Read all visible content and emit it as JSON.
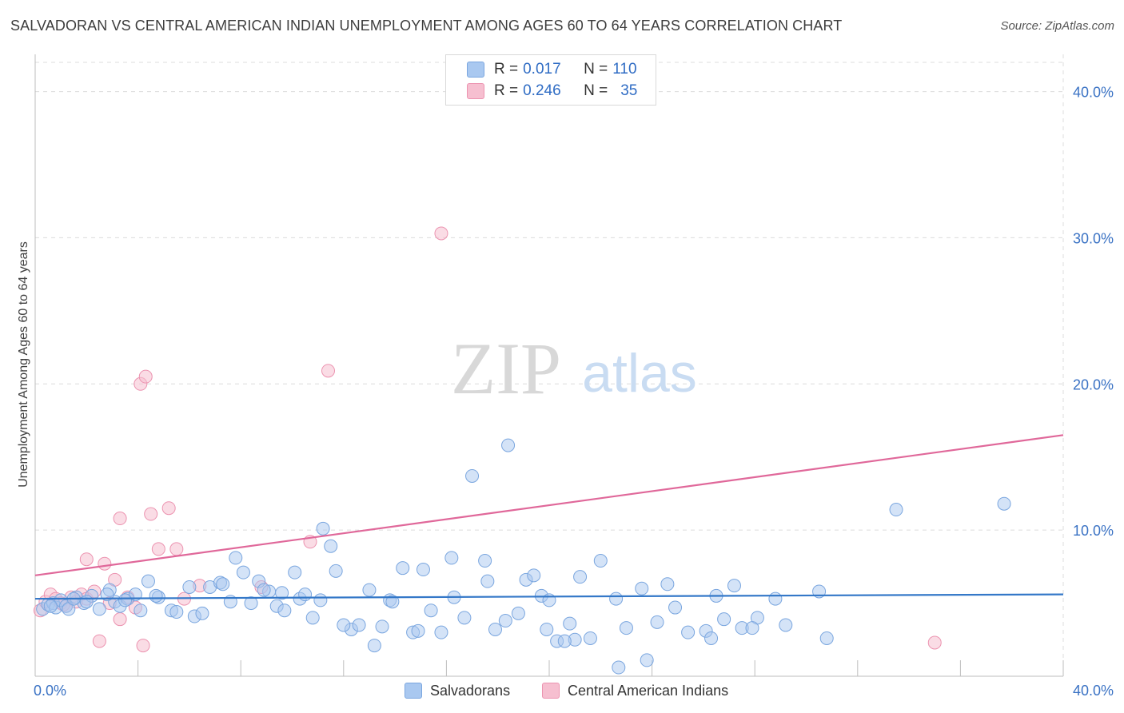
{
  "title": "SALVADORAN VS CENTRAL AMERICAN INDIAN UNEMPLOYMENT AMONG AGES 60 TO 64 YEARS CORRELATION CHART",
  "source": "Source: ZipAtlas.com",
  "watermark": {
    "zip": "ZIP",
    "atlas": "atlas"
  },
  "legend_top": [
    {
      "r_label": "R = ",
      "r_value": "0.017",
      "n_label": "N = ",
      "n_value": "110"
    },
    {
      "r_label": "R = ",
      "r_value": "0.246",
      "n_label": "N = ",
      "n_value": "35"
    }
  ],
  "legend_bottom": [
    "Salvadorans",
    "Central American Indians"
  ],
  "colors": {
    "blue_fill": "#a9c8f0",
    "blue_stroke": "#7aa6df",
    "blue_line": "#3478c8",
    "pink_fill": "#f6bfd0",
    "pink_stroke": "#ec93b0",
    "pink_line": "#e0689a",
    "tick_text": "#3a72c4",
    "grid": "#dcdcdc"
  },
  "chart_data": {
    "type": "scatter",
    "title": "SALVADORAN VS CENTRAL AMERICAN INDIAN UNEMPLOYMENT AMONG AGES 60 TO 64 YEARS CORRELATION CHART",
    "xlabel": "",
    "ylabel": "Unemployment Among Ages 60 to 64 years",
    "xlim": [
      0,
      40
    ],
    "ylim": [
      0,
      42
    ],
    "x_tick_labels": [
      {
        "value": 0,
        "label": "0.0%"
      },
      {
        "value": 40,
        "label": "40.0%"
      }
    ],
    "y_tick_labels": [
      {
        "value": 10,
        "label": "10.0%"
      },
      {
        "value": 20,
        "label": "20.0%"
      },
      {
        "value": 30,
        "label": "30.0%"
      },
      {
        "value": 40,
        "label": "40.0%"
      }
    ],
    "grid": true,
    "legend_position": "top-center",
    "series": [
      {
        "name": "Salvadorans",
        "r": 0.017,
        "n": 110,
        "trend": {
          "x": [
            0,
            40
          ],
          "y": [
            5.3,
            5.6
          ]
        },
        "points": [
          [
            0.3,
            4.6
          ],
          [
            0.5,
            4.9
          ],
          [
            0.7,
            5.0
          ],
          [
            0.8,
            4.7
          ],
          [
            1.0,
            5.2
          ],
          [
            1.2,
            4.8
          ],
          [
            1.3,
            4.6
          ],
          [
            1.6,
            5.4
          ],
          [
            1.9,
            5.0
          ],
          [
            2.2,
            5.5
          ],
          [
            2.5,
            4.6
          ],
          [
            2.9,
            5.9
          ],
          [
            3.1,
            5.1
          ],
          [
            3.3,
            4.8
          ],
          [
            3.6,
            5.3
          ],
          [
            3.9,
            5.6
          ],
          [
            4.1,
            4.5
          ],
          [
            4.4,
            6.5
          ],
          [
            4.8,
            5.4
          ],
          [
            5.3,
            4.5
          ],
          [
            5.5,
            4.4
          ],
          [
            6.2,
            4.1
          ],
          [
            6.8,
            6.1
          ],
          [
            7.2,
            6.4
          ],
          [
            7.6,
            5.1
          ],
          [
            7.8,
            8.1
          ],
          [
            8.1,
            7.1
          ],
          [
            8.4,
            5.0
          ],
          [
            8.7,
            6.5
          ],
          [
            9.1,
            5.8
          ],
          [
            9.4,
            4.8
          ],
          [
            9.7,
            4.5
          ],
          [
            10.1,
            7.1
          ],
          [
            10.3,
            5.3
          ],
          [
            10.5,
            5.6
          ],
          [
            10.8,
            4.0
          ],
          [
            11.1,
            5.2
          ],
          [
            11.5,
            8.9
          ],
          [
            11.7,
            7.2
          ],
          [
            12.3,
            3.2
          ],
          [
            12.6,
            3.5
          ],
          [
            13.0,
            5.9
          ],
          [
            13.2,
            2.1
          ],
          [
            13.5,
            3.4
          ],
          [
            13.8,
            5.2
          ],
          [
            14.3,
            7.4
          ],
          [
            14.7,
            3.0
          ],
          [
            15.1,
            7.3
          ],
          [
            15.4,
            4.5
          ],
          [
            15.8,
            3.0
          ],
          [
            16.2,
            8.1
          ],
          [
            16.7,
            4.0
          ],
          [
            17.0,
            13.7
          ],
          [
            17.5,
            7.9
          ],
          [
            17.6,
            6.5
          ],
          [
            18.3,
            3.8
          ],
          [
            18.8,
            4.3
          ],
          [
            19.1,
            6.6
          ],
          [
            19.4,
            6.9
          ],
          [
            19.7,
            5.5
          ],
          [
            20.0,
            5.2
          ],
          [
            20.3,
            2.4
          ],
          [
            20.8,
            3.6
          ],
          [
            21.2,
            6.8
          ],
          [
            21.6,
            2.6
          ],
          [
            22.0,
            7.9
          ],
          [
            22.6,
            5.3
          ],
          [
            23.0,
            3.3
          ],
          [
            23.6,
            6.0
          ],
          [
            24.2,
            3.7
          ],
          [
            24.6,
            6.3
          ],
          [
            25.4,
            3.0
          ],
          [
            26.1,
            3.1
          ],
          [
            26.8,
            3.9
          ],
          [
            26.3,
            2.6
          ],
          [
            26.5,
            5.5
          ],
          [
            27.2,
            6.2
          ],
          [
            27.5,
            3.3
          ],
          [
            28.1,
            4.0
          ],
          [
            28.8,
            5.3
          ],
          [
            29.2,
            3.5
          ],
          [
            30.5,
            5.8
          ],
          [
            30.8,
            2.6
          ],
          [
            33.5,
            11.4
          ],
          [
            37.7,
            11.8
          ],
          [
            18.4,
            15.8
          ],
          [
            11.2,
            10.1
          ],
          [
            6.0,
            6.1
          ],
          [
            7.3,
            6.3
          ],
          [
            9.6,
            5.7
          ],
          [
            3.5,
            5.2
          ],
          [
            2.8,
            5.6
          ],
          [
            12.0,
            3.5
          ],
          [
            14.9,
            3.1
          ],
          [
            19.9,
            3.2
          ],
          [
            21.0,
            2.5
          ],
          [
            13.9,
            5.1
          ],
          [
            16.3,
            5.4
          ],
          [
            0.6,
            4.8
          ],
          [
            1.5,
            5.3
          ],
          [
            2.0,
            5.1
          ],
          [
            4.7,
            5.5
          ],
          [
            6.5,
            4.3
          ],
          [
            8.9,
            5.9
          ],
          [
            17.9,
            3.2
          ],
          [
            20.6,
            2.4
          ],
          [
            22.7,
            0.6
          ],
          [
            23.8,
            1.1
          ],
          [
            24.9,
            4.7
          ],
          [
            27.9,
            3.3
          ]
        ]
      },
      {
        "name": "Central American Indians",
        "r": 0.246,
        "n": 35,
        "trend": {
          "x": [
            0,
            40
          ],
          "y": [
            6.9,
            16.5
          ]
        },
        "points": [
          [
            0.2,
            4.5
          ],
          [
            0.4,
            5.1
          ],
          [
            0.6,
            5.6
          ],
          [
            0.8,
            5.3
          ],
          [
            1.0,
            5.0
          ],
          [
            1.2,
            4.8
          ],
          [
            1.4,
            5.4
          ],
          [
            1.6,
            5.1
          ],
          [
            1.8,
            5.6
          ],
          [
            2.0,
            5.3
          ],
          [
            2.3,
            5.8
          ],
          [
            2.5,
            2.4
          ],
          [
            2.7,
            7.7
          ],
          [
            2.9,
            5.0
          ],
          [
            3.1,
            6.6
          ],
          [
            3.3,
            3.9
          ],
          [
            3.6,
            5.4
          ],
          [
            3.9,
            4.7
          ],
          [
            4.1,
            20.0
          ],
          [
            4.3,
            20.5
          ],
          [
            4.5,
            11.1
          ],
          [
            4.8,
            8.7
          ],
          [
            5.2,
            11.5
          ],
          [
            5.5,
            8.7
          ],
          [
            5.8,
            5.3
          ],
          [
            6.4,
            6.2
          ],
          [
            8.8,
            6.1
          ],
          [
            10.7,
            9.2
          ],
          [
            11.4,
            20.9
          ],
          [
            15.8,
            30.3
          ],
          [
            35.0,
            2.3
          ],
          [
            2.0,
            8.0
          ],
          [
            3.3,
            10.8
          ],
          [
            4.2,
            2.1
          ],
          [
            1.1,
            4.9
          ]
        ]
      }
    ]
  }
}
